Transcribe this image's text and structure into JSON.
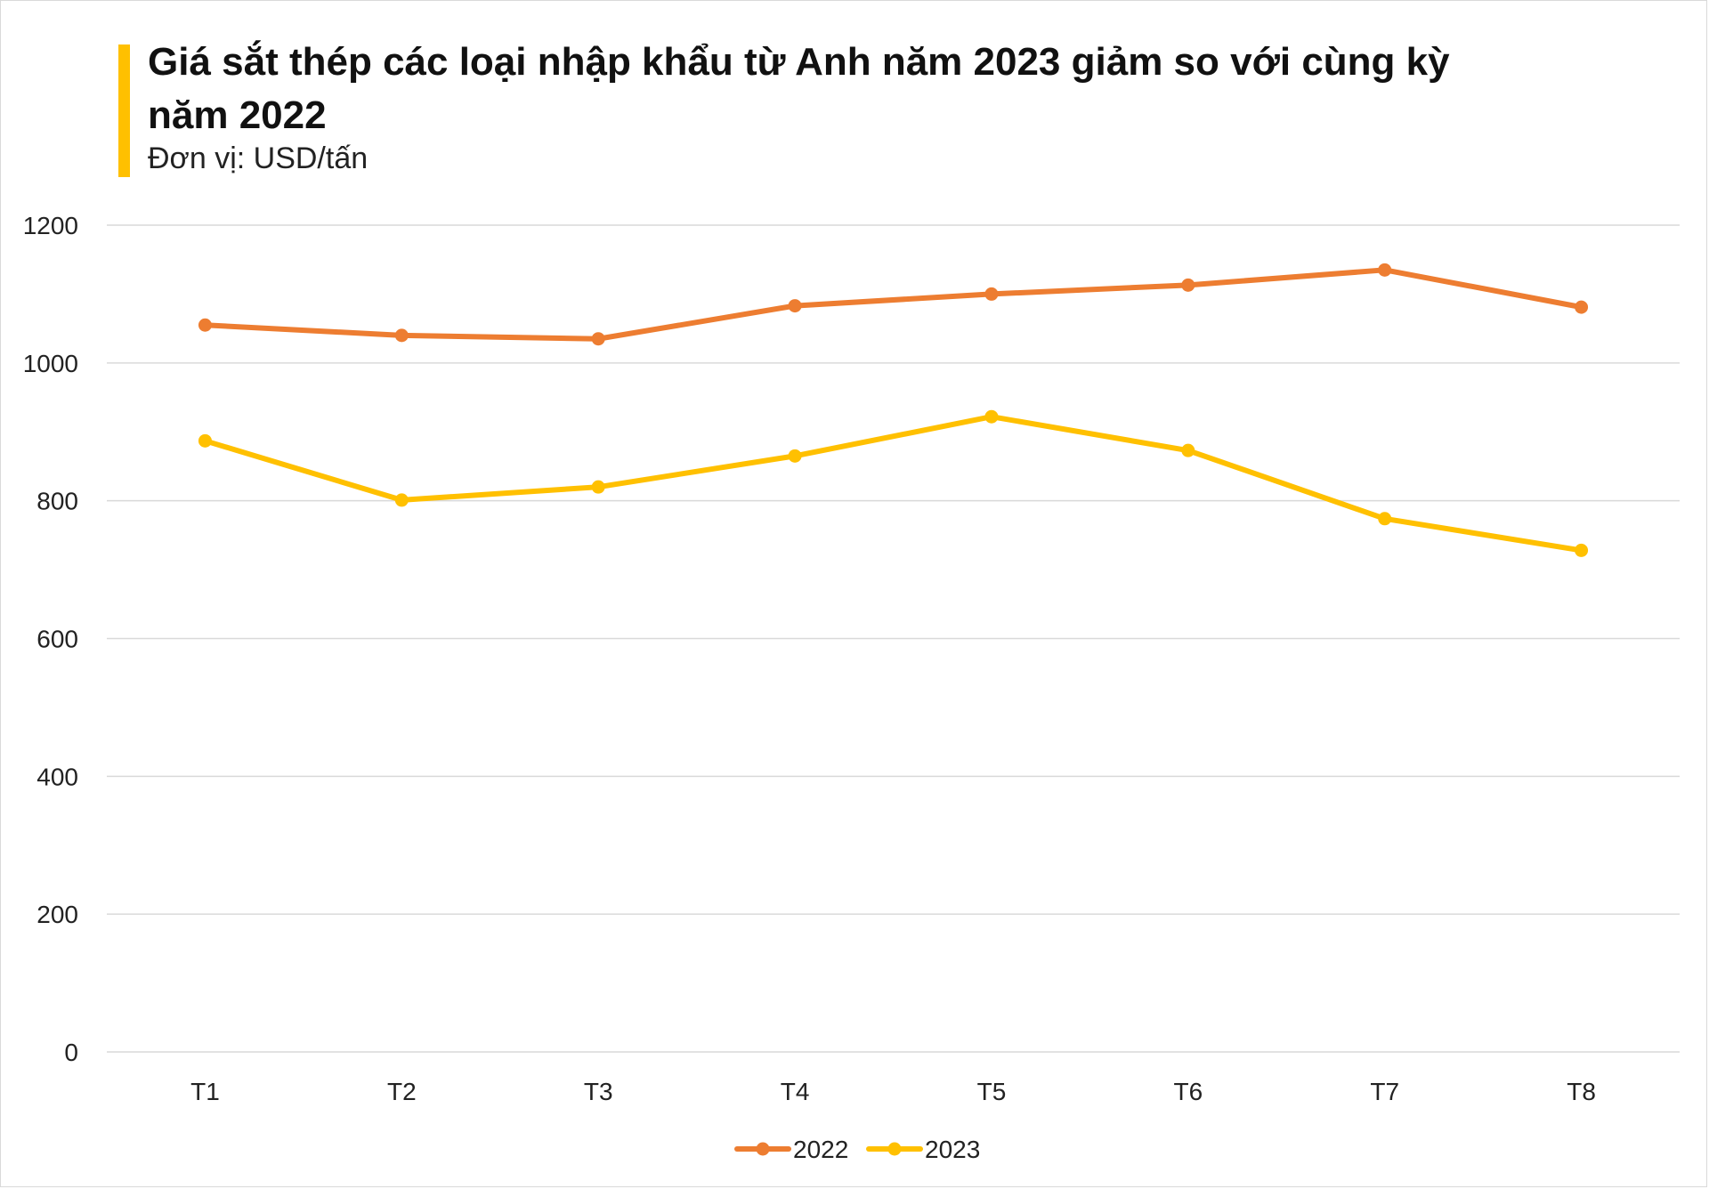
{
  "chart_data": {
    "type": "line",
    "title": "Giá sắt thép các loại nhập khẩu từ Anh năm 2023 giảm so với cùng kỳ năm 2022",
    "subtitle": "Đơn vị: USD/tấn",
    "xlabel": "",
    "ylabel": "",
    "categories": [
      "T1",
      "T2",
      "T3",
      "T4",
      "T5",
      "T6",
      "T7",
      "T8"
    ],
    "yticks": [
      "0",
      "200",
      "400",
      "600",
      "800",
      "1000",
      "1200"
    ],
    "ylim": [
      0,
      1200
    ],
    "grid": true,
    "legend_position": "bottom",
    "series": [
      {
        "name": "2022",
        "color": "#ed7d31",
        "values": [
          1055,
          1040,
          1035,
          1083,
          1100,
          1113,
          1135,
          1081
        ]
      },
      {
        "name": "2023",
        "color": "#ffc000",
        "values": [
          887,
          801,
          820,
          865,
          922,
          873,
          774,
          728
        ]
      }
    ]
  }
}
